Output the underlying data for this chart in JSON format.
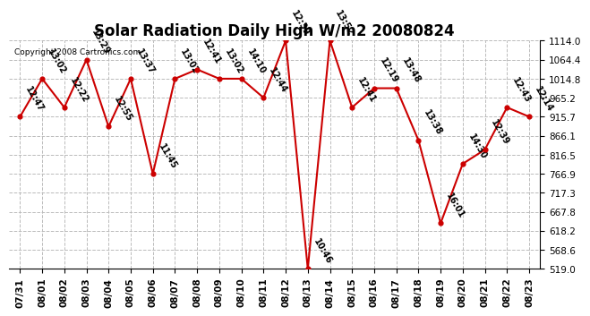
{
  "title": "Solar Radiation Daily High W/m2 20080824",
  "copyright": "Copyright 2008 Cartronics.com",
  "dates": [
    "07/31",
    "08/01",
    "08/02",
    "08/03",
    "08/04",
    "08/05",
    "08/06",
    "08/07",
    "08/08",
    "08/09",
    "08/10",
    "08/11",
    "08/12",
    "08/13",
    "08/14",
    "08/15",
    "08/16",
    "08/17",
    "08/18",
    "08/19",
    "08/20",
    "08/21",
    "08/22",
    "08/23"
  ],
  "values": [
    915.7,
    1014.8,
    940.0,
    1064.4,
    890.0,
    1014.8,
    766.9,
    1014.8,
    1039.0,
    1014.8,
    1014.8,
    965.2,
    1114.0,
    519.0,
    1114.0,
    940.0,
    990.0,
    990.0,
    854.0,
    638.0,
    793.0,
    830.0,
    940.0,
    915.7
  ],
  "labels": [
    "12:47",
    "13:02",
    "12:22",
    "13:29",
    "12:55",
    "13:37",
    "11:45",
    "13:02",
    "12:41",
    "13:02",
    "14:10",
    "12:44",
    "12:39",
    "10:46",
    "13:52",
    "12:41",
    "12:19",
    "13:48",
    "13:38",
    "16:01",
    "14:30",
    "12:39",
    "12:43",
    "12:14"
  ],
  "ylim": [
    519.0,
    1114.0
  ],
  "yticks": [
    519.0,
    568.6,
    618.2,
    667.8,
    717.3,
    766.9,
    816.5,
    866.1,
    915.7,
    965.2,
    1014.8,
    1064.4,
    1114.0
  ],
  "line_color": "#cc0000",
  "marker_color": "#cc0000",
  "bg_color": "#ffffff",
  "grid_color": "#bbbbbb",
  "title_fontsize": 12,
  "label_fontsize": 7,
  "tick_fontsize": 7.5,
  "copyright_fontsize": 6.5
}
